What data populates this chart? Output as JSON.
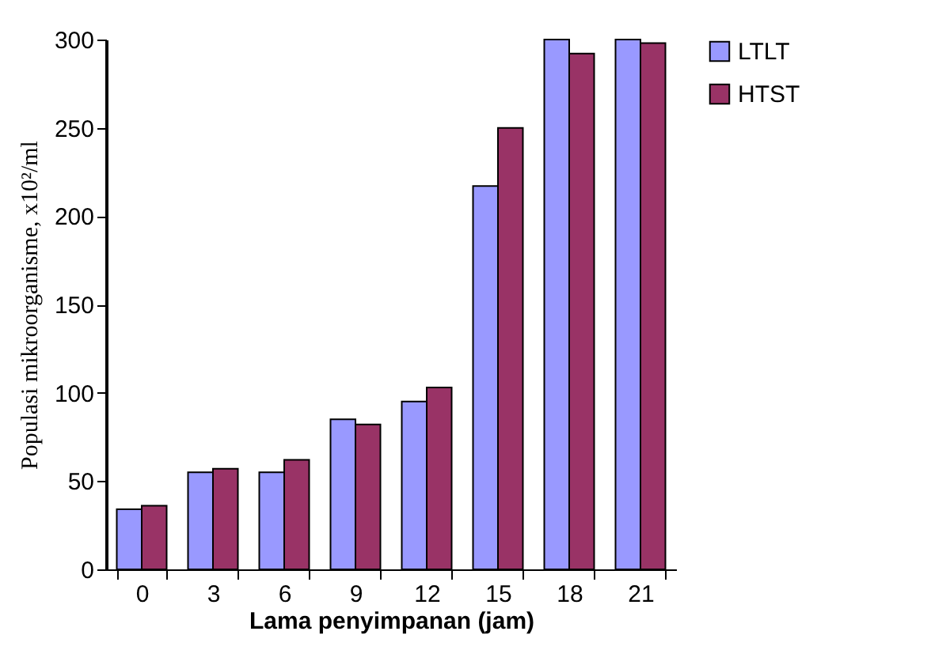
{
  "chart_data": {
    "type": "bar",
    "xlabel": "Lama penyimpanan (jam)",
    "ylabel": "Populasi mikroorganisme, x10²/ml",
    "categories": [
      "0",
      "3",
      "6",
      "9",
      "12",
      "15",
      "18",
      "21"
    ],
    "series": [
      {
        "name": "LTLT",
        "color": "#9999ff",
        "values": [
          34,
          55,
          55,
          85,
          95,
          217,
          300,
          300
        ]
      },
      {
        "name": "HTST",
        "color": "#993366",
        "values": [
          36,
          57,
          62,
          82,
          103,
          250,
          292,
          298
        ]
      }
    ],
    "ylim": [
      0,
      300
    ],
    "yticks": [
      0,
      50,
      100,
      150,
      200,
      250,
      300
    ],
    "grid": false,
    "legend": "right"
  }
}
